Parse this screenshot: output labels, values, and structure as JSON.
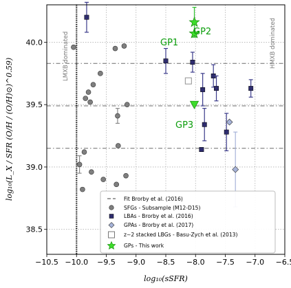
{
  "chart_data": {
    "type": "scatter",
    "xlabel": "log₁₀(sSFR)",
    "ylabel": "log₁₀(L_X / SFR (O/H / (O/H)⊙)^0.59)",
    "xlim": [
      -10.5,
      -6.5
    ],
    "ylim": [
      38.3,
      40.3
    ],
    "xticks": [
      -10.5,
      -10.0,
      -9.5,
      -9.0,
      -8.5,
      -8.0,
      -7.5,
      -7.0,
      -6.5
    ],
    "xtick_labels": [
      "−10.5",
      "−10.0",
      "−9.5",
      "−9.0",
      "−8.5",
      "−8.0",
      "−7.5",
      "−7.0",
      "−6.5"
    ],
    "yticks": [
      38.5,
      39.0,
      39.5,
      40.0
    ],
    "ytick_labels": [
      "38.5",
      "39.0",
      "39.5",
      "40.0"
    ],
    "grid": true,
    "legend_position": "bottom-right",
    "annotations": {
      "lmxb": "LMXB dominated",
      "hmxb": "HMXB dominated",
      "gp1": "GP1",
      "gp2": "GP2",
      "gp3": "GP3"
    },
    "threshold_x": -10.0,
    "fit_lines": [
      39.83,
      39.49,
      39.15
    ],
    "series": [
      {
        "name": "SFGs - Subsample (M12-D15)",
        "marker": "circle",
        "color": "#7f7f7f",
        "points": [
          [
            -10.05,
            39.96
          ],
          [
            -9.72,
            39.66
          ],
          [
            -9.6,
            39.75
          ],
          [
            -9.35,
            39.95
          ],
          [
            -9.2,
            39.97
          ],
          [
            -9.8,
            39.6
          ],
          [
            -9.85,
            39.55
          ],
          [
            -9.77,
            39.52
          ],
          [
            -9.15,
            39.5
          ],
          [
            -9.31,
            39.41
          ],
          [
            -9.3,
            39.17
          ],
          [
            -9.87,
            39.12
          ],
          [
            -9.95,
            39.02
          ],
          [
            -9.75,
            38.96
          ],
          [
            -9.55,
            38.9
          ],
          [
            -9.33,
            38.86
          ],
          [
            -9.17,
            38.93
          ],
          [
            -9.9,
            38.82
          ]
        ],
        "yerr": [
          0,
          0,
          0,
          0,
          0,
          0,
          0,
          0,
          0,
          0.06,
          0,
          0,
          0.07,
          0,
          0,
          0,
          0,
          0
        ]
      },
      {
        "name": "LBAs - Brorby et al. (2016)",
        "marker": "square",
        "color": "#2e2c6e",
        "points": [
          [
            -9.83,
            40.2
          ],
          [
            -8.5,
            39.85
          ],
          [
            -8.05,
            39.84
          ],
          [
            -7.7,
            39.73
          ],
          [
            -7.65,
            39.63
          ],
          [
            -7.88,
            39.62
          ],
          [
            -7.07,
            39.63
          ],
          [
            -7.85,
            39.34
          ],
          [
            -7.48,
            39.28
          ],
          [
            -7.9,
            39.14
          ]
        ],
        "yerr": [
          0.12,
          0.1,
          0.08,
          0.09,
          0.1,
          0.13,
          0.07,
          0.13,
          0.15,
          0
        ]
      },
      {
        "name": "GPAs - Brorby et al. (2017)",
        "marker": "diamond",
        "color": "#a6b3d9",
        "points": [
          [
            -7.43,
            39.36
          ],
          [
            -7.33,
            38.98
          ]
        ],
        "yerr": [
          0,
          0.3
        ]
      },
      {
        "name": "z~2 stacked LBGs - Basu-Zych et al. (2013)",
        "marker": "open-square",
        "color": "#9a9a9a",
        "points": [
          [
            -8.12,
            39.69
          ]
        ],
        "yerr": [
          0
        ]
      },
      {
        "name": "GPs - This work",
        "marker": "star",
        "color": "#3ddc2b",
        "points": [
          [
            -8.02,
            40.16
          ],
          [
            -8.02,
            40.07
          ]
        ],
        "yerr": [
          0.12,
          0
        ]
      }
    ],
    "gp3_upper_limit": [
      -8.02,
      39.5
    ],
    "legend": [
      "Fit Brorby et al. (2016)",
      "SFGs - Subsample (M12-D15)",
      "LBAs - Brorby et al. (2016)",
      "GPAs - Brorby et al. (2017)",
      "z∼2 stacked LBGs - Basu-Zych et al. (2013)",
      "GPs - This work"
    ]
  }
}
